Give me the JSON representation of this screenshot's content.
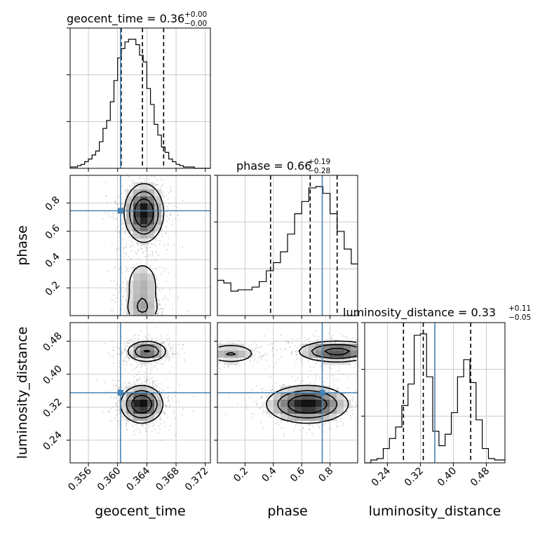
{
  "chart_data": {
    "type": "corner",
    "parameters": [
      "geocent_time",
      "phase",
      "luminosity_distance"
    ],
    "colors": {
      "truth": "#4682b4",
      "hist": "#000000",
      "grid": "#c0c0c0",
      "points": "#7f7f7f"
    },
    "titles": {
      "geocent_time": {
        "name": "geocent_time",
        "median": "0.36",
        "plus": "+0.00",
        "minus": "−0.00"
      },
      "phase": {
        "name": "phase",
        "median": "0.66",
        "plus": "+0.19",
        "minus": "−0.28"
      },
      "luminosity_distance": {
        "name": "luminosity_distance",
        "median": "0.33",
        "plus": "+0.11",
        "minus": "−0.05"
      }
    },
    "axes": {
      "geocent_time": {
        "label": "geocent_time",
        "range": [
          0.3535,
          0.3727
        ],
        "ticks": [
          0.356,
          0.36,
          0.364,
          0.368,
          0.372
        ],
        "tick_labels": [
          "0.356",
          "0.360",
          "0.364",
          "0.368",
          "0.372"
        ]
      },
      "phase": {
        "label": "phase",
        "range": [
          0.005,
          0.995
        ],
        "ticks": [
          0.2,
          0.4,
          0.6,
          0.8
        ],
        "tick_labels": [
          "0.2",
          "0.4",
          "0.6",
          "0.8"
        ]
      },
      "luminosity_distance": {
        "label": "luminosity_distance",
        "range": [
          0.185,
          0.525
        ],
        "ticks": [
          0.24,
          0.32,
          0.4,
          0.48
        ],
        "tick_labels": [
          "0.24",
          "0.32",
          "0.40",
          "0.48"
        ]
      }
    },
    "truths": {
      "geocent_time": 0.3604,
      "phase": 0.745,
      "luminosity_distance": 0.355
    },
    "quantiles": {
      "geocent_time": [
        0.3605,
        0.3634,
        0.3663
      ],
      "phase": [
        0.38,
        0.66,
        0.85
      ],
      "luminosity_distance": [
        0.279,
        0.327,
        0.442
      ]
    },
    "histograms": {
      "geocent_time": {
        "edges": [
          0.3535,
          0.354,
          0.3545,
          0.355,
          0.3555,
          0.356,
          0.3565,
          0.357,
          0.3575,
          0.358,
          0.3585,
          0.359,
          0.3595,
          0.36,
          0.3605,
          0.361,
          0.3615,
          0.362,
          0.3625,
          0.363,
          0.3635,
          0.364,
          0.3645,
          0.365,
          0.3655,
          0.366,
          0.3665,
          0.367,
          0.3675,
          0.368,
          0.3685,
          0.369,
          0.3695,
          0.37,
          0.3705,
          0.371,
          0.3715,
          0.372,
          0.3727
        ],
        "counts": [
          0.01,
          0.01,
          0.02,
          0.03,
          0.05,
          0.07,
          0.1,
          0.13,
          0.2,
          0.3,
          0.36,
          0.5,
          0.66,
          0.83,
          0.9,
          0.95,
          0.97,
          0.97,
          0.93,
          0.85,
          0.8,
          0.6,
          0.48,
          0.33,
          0.25,
          0.16,
          0.12,
          0.07,
          0.05,
          0.03,
          0.02,
          0.01,
          0.01,
          0.01,
          0.0,
          0.0,
          0.0,
          0.0
        ]
      },
      "phase": {
        "edges": [
          0.005,
          0.05,
          0.1,
          0.15,
          0.2,
          0.25,
          0.3,
          0.35,
          0.4,
          0.45,
          0.5,
          0.55,
          0.6,
          0.65,
          0.7,
          0.75,
          0.8,
          0.85,
          0.9,
          0.95,
          0.995
        ],
        "counts": [
          0.26,
          0.24,
          0.18,
          0.19,
          0.19,
          0.21,
          0.25,
          0.33,
          0.39,
          0.47,
          0.6,
          0.75,
          0.84,
          0.94,
          0.95,
          0.9,
          0.75,
          0.62,
          0.49,
          0.38
        ]
      },
      "luminosity_distance": {
        "edges": [
          0.185,
          0.2,
          0.215,
          0.23,
          0.245,
          0.26,
          0.275,
          0.29,
          0.305,
          0.32,
          0.335,
          0.35,
          0.365,
          0.38,
          0.395,
          0.41,
          0.425,
          0.44,
          0.455,
          0.47,
          0.485,
          0.5,
          0.525
        ],
        "counts": [
          0.0,
          0.02,
          0.03,
          0.1,
          0.17,
          0.25,
          0.4,
          0.55,
          0.89,
          0.9,
          0.6,
          0.22,
          0.12,
          0.2,
          0.35,
          0.6,
          0.72,
          0.56,
          0.3,
          0.1,
          0.03,
          0.02
        ]
      }
    },
    "contours_2d": [
      {
        "x": "geocent_time",
        "y": "phase",
        "blobs": [
          {
            "cx": 0.3636,
            "cy": 0.73,
            "sx": 0.0013,
            "sy": 0.1,
            "w": 1.0
          },
          {
            "cx": 0.3634,
            "cy": 0.22,
            "sx": 0.0013,
            "sy": 0.1,
            "w": 0.3
          },
          {
            "cx": 0.3634,
            "cy": 0.05,
            "sx": 0.0013,
            "sy": 0.06,
            "w": 0.3
          }
        ]
      },
      {
        "x": "geocent_time",
        "y": "luminosity_distance",
        "blobs": [
          {
            "cx": 0.3633,
            "cy": 0.327,
            "sx": 0.0014,
            "sy": 0.022,
            "w": 1.0
          },
          {
            "cx": 0.364,
            "cy": 0.455,
            "sx": 0.0014,
            "sy": 0.013,
            "w": 0.65
          }
        ]
      },
      {
        "x": "phase",
        "y": "luminosity_distance",
        "blobs": [
          {
            "cx": 0.64,
            "cy": 0.327,
            "sx": 0.14,
            "sy": 0.022,
            "w": 1.0
          },
          {
            "cx": 0.85,
            "cy": 0.455,
            "sx": 0.14,
            "sy": 0.013,
            "w": 0.75
          },
          {
            "cx": 0.1,
            "cy": 0.45,
            "sx": 0.1,
            "sy": 0.013,
            "w": 0.35
          }
        ]
      }
    ],
    "grid": true
  }
}
